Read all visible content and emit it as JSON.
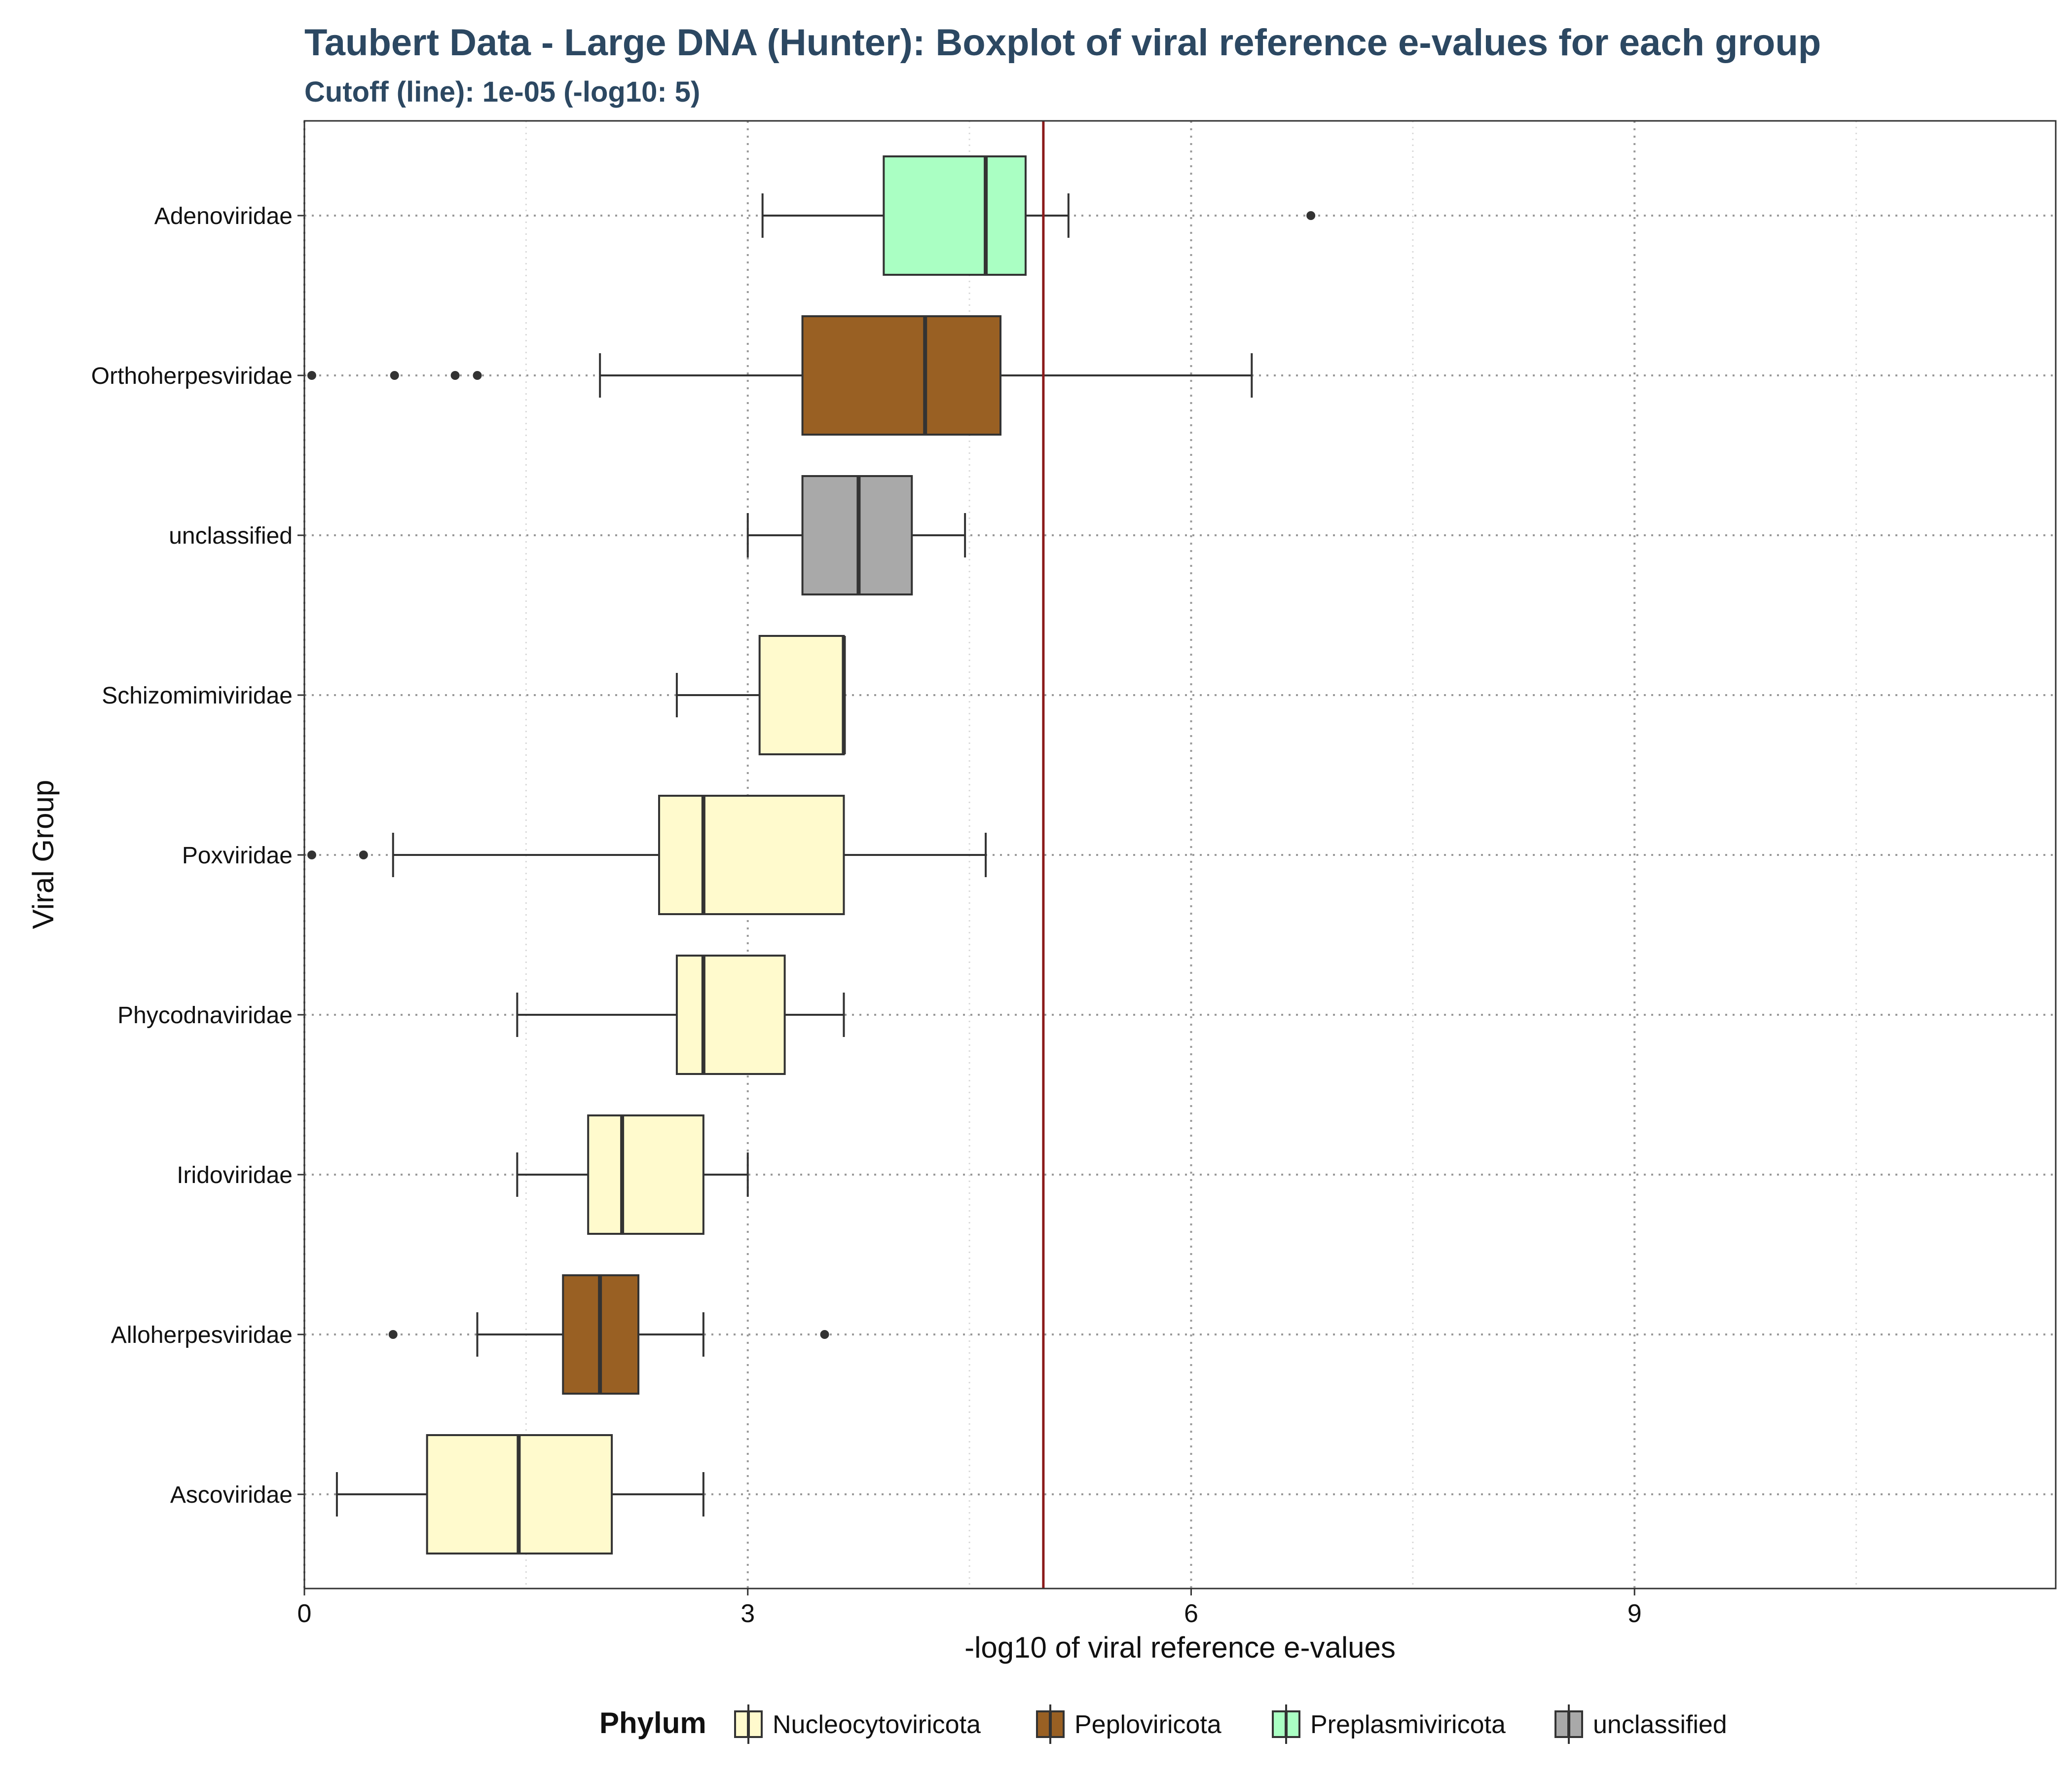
{
  "chart_data": {
    "type": "boxplot",
    "orientation": "horizontal",
    "title": "Taubert Data - Large DNA (Hunter): Boxplot of viral reference e-values for each group",
    "subtitle": "Cutoff (line): 1e-05 (-log10: 5)",
    "xlabel": "-log10 of viral reference e-values",
    "ylabel": "Viral Group",
    "xlim": [
      0,
      11.85
    ],
    "xticks": [
      "0",
      "3",
      "6",
      "9"
    ],
    "xtick_values": [
      0,
      3,
      6,
      9
    ],
    "cutoff": 5,
    "cutoff_color": "#8b1a1a",
    "grid": true,
    "legend": {
      "title": "Phylum",
      "position": "bottom",
      "items": [
        {
          "label": "Nucleocytoviricota",
          "color": "#fffacd"
        },
        {
          "label": "Peploviricota",
          "color": "#996023"
        },
        {
          "label": "Preplasmiviricota",
          "color": "#aaffc3"
        },
        {
          "label": "unclassified",
          "color": "#a9a9a9"
        }
      ]
    },
    "categories": [
      "Adenoviridae",
      "Orthoherpesviridae",
      "unclassified",
      "Schizomimiviridae",
      "Poxviridae",
      "Phycodnaviridae",
      "Iridoviridae",
      "Alloherpesviridae",
      "Ascoviridae"
    ],
    "boxes": [
      {
        "group": "Adenoviridae",
        "phylum": "Preplasmiviricota",
        "whisker_low": 3.1,
        "q1": 3.92,
        "median": 4.61,
        "q3": 4.88,
        "whisker_high": 5.17,
        "outliers": [
          6.81
        ]
      },
      {
        "group": "Orthoherpesviridae",
        "phylum": "Peploviricota",
        "whisker_low": 2.0,
        "q1": 3.37,
        "median": 4.2,
        "q3": 4.71,
        "whisker_high": 6.41,
        "outliers": [
          0.05,
          0.61,
          1.02,
          1.17
        ]
      },
      {
        "group": "unclassified",
        "phylum": "unclassified",
        "whisker_low": 3.0,
        "q1": 3.37,
        "median": 3.75,
        "q3": 4.11,
        "whisker_high": 4.47,
        "outliers": []
      },
      {
        "group": "Schizomimiviridae",
        "phylum": "Nucleocytoviricota",
        "whisker_low": 2.52,
        "q1": 3.08,
        "median": 3.65,
        "q3": 3.65,
        "whisker_high": 3.65,
        "outliers": []
      },
      {
        "group": "Poxviridae",
        "phylum": "Nucleocytoviricota",
        "whisker_low": 0.6,
        "q1": 2.4,
        "median": 2.7,
        "q3": 3.65,
        "whisker_high": 4.61,
        "outliers": [
          0.05,
          0.4
        ]
      },
      {
        "group": "Phycodnaviridae",
        "phylum": "Nucleocytoviricota",
        "whisker_low": 1.44,
        "q1": 2.52,
        "median": 2.7,
        "q3": 3.25,
        "whisker_high": 3.65,
        "outliers": []
      },
      {
        "group": "Iridoviridae",
        "phylum": "Nucleocytoviricota",
        "whisker_low": 1.44,
        "q1": 1.92,
        "median": 2.15,
        "q3": 2.7,
        "whisker_high": 3.0,
        "outliers": []
      },
      {
        "group": "Alloherpesviridae",
        "phylum": "Peploviricota",
        "whisker_low": 1.17,
        "q1": 1.75,
        "median": 2.0,
        "q3": 2.26,
        "whisker_high": 2.7,
        "outliers": [
          0.6,
          3.52
        ]
      },
      {
        "group": "Ascoviridae",
        "phylum": "Nucleocytoviricota",
        "whisker_low": 0.22,
        "q1": 0.83,
        "median": 1.45,
        "q3": 2.08,
        "whisker_high": 2.7,
        "outliers": []
      }
    ]
  }
}
